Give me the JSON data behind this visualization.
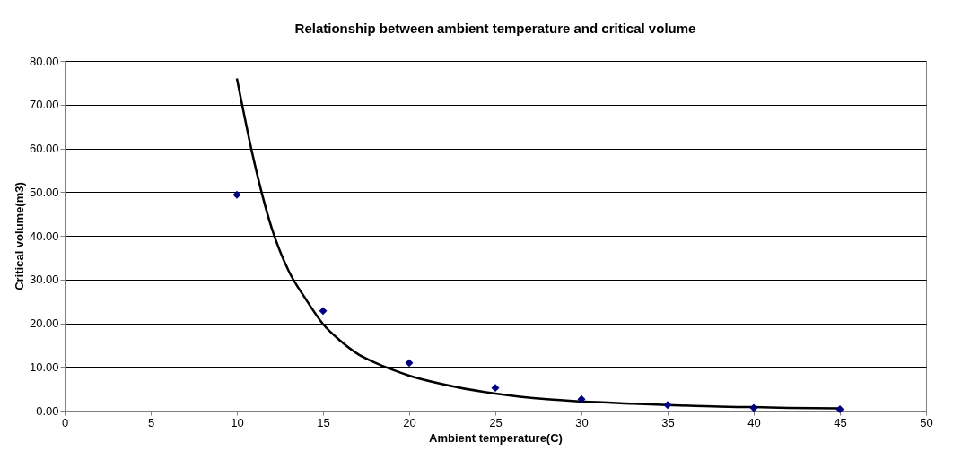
{
  "chart_data": {
    "type": "scatter",
    "title": "Relationship between ambient temperature and critical volume",
    "xlabel": "Ambient temperature(C)",
    "ylabel": "Critical volume(m3)",
    "series": [
      {
        "type": "scatter",
        "color": "#000080",
        "marker": "diamond",
        "x": [
          10,
          15,
          20,
          25,
          30,
          35,
          40,
          45
        ],
        "values": [
          49.4,
          22.8,
          10.9,
          5.2,
          2.6,
          1.3,
          0.6,
          0.3
        ]
      },
      {
        "type": "line",
        "color": "#000000",
        "marker": "none",
        "line_style": "solid",
        "x": [
          10,
          11,
          12,
          13,
          14,
          15,
          16,
          17,
          18,
          19,
          20,
          22,
          25,
          28,
          30,
          33,
          35,
          38,
          40,
          42,
          45
        ],
        "values": [
          76,
          57,
          42,
          32,
          25.5,
          19.8,
          16,
          13,
          11,
          9.4,
          8,
          6,
          3.9,
          2.6,
          2.1,
          1.6,
          1.3,
          0.9,
          0.8,
          0.6,
          0.5
        ]
      }
    ],
    "xlim": [
      0,
      50
    ],
    "xticks": [
      0,
      5,
      10,
      15,
      20,
      25,
      30,
      35,
      40,
      45,
      50
    ],
    "ylim": [
      0,
      80
    ],
    "yticks": [
      {
        "value": 0,
        "label": "0.00"
      },
      {
        "value": 10,
        "label": "10.00"
      },
      {
        "value": 20,
        "label": "20.00"
      },
      {
        "value": 30,
        "label": "30.00"
      },
      {
        "value": 40,
        "label": "40.00"
      },
      {
        "value": 50,
        "label": "50.00"
      },
      {
        "value": 60,
        "label": "60.00"
      },
      {
        "value": 70,
        "label": "70.00"
      },
      {
        "value": 80,
        "label": "80.00"
      }
    ],
    "grid": "y"
  }
}
